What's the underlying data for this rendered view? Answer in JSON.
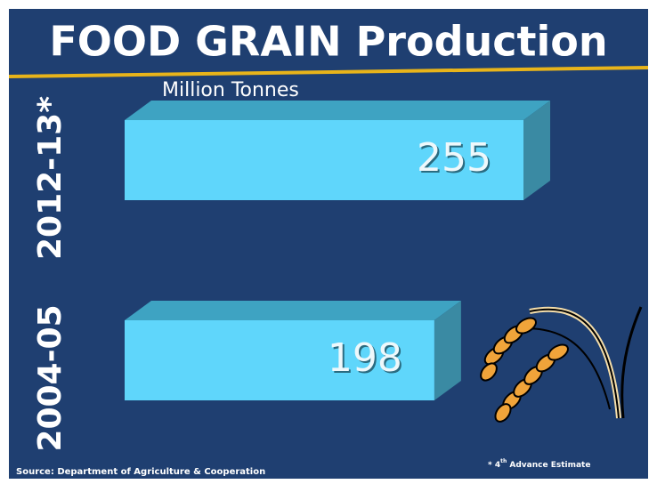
{
  "chart_data": {
    "type": "bar",
    "orientation": "horizontal",
    "title": "FOOD GRAIN Production",
    "unit_label": "Million Tonnes",
    "categories": [
      "2012-13*",
      "2004-05"
    ],
    "values": [
      255,
      198
    ],
    "color": "#5fd6fb",
    "source": "Source: Department of Agriculture & Cooperation",
    "footnote": {
      "before": "* 4",
      "superscript": "th",
      "after": " Advance Estimate"
    }
  }
}
